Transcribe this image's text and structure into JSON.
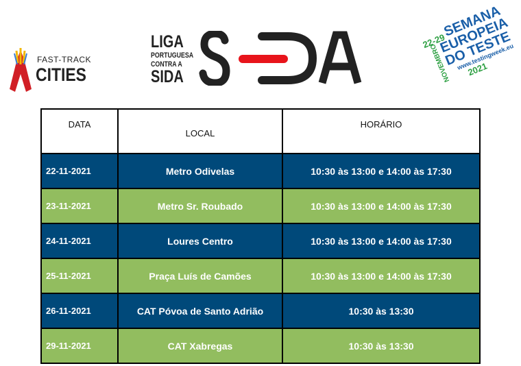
{
  "logos": {
    "fast_track": {
      "line1": "FAST-TRACK",
      "line2": "CITIES"
    },
    "liga": {
      "line1": "LIGA",
      "line2": "PORTUGUESA",
      "line3": "CONTRA A",
      "line4": "SIDA",
      "mark": "SIDA"
    },
    "semana": {
      "dates": "22-29",
      "month": "NOVEMBRO",
      "year": "2021",
      "line1": "SEMANA",
      "line2": "EUROPEIA",
      "line3": "DO TESTE",
      "url": "www.testingweek.eu"
    }
  },
  "colors": {
    "blue": "#00497a",
    "green": "#92bd5f"
  },
  "table": {
    "headers": [
      "DATA",
      "LOCAL",
      "HORÁRIO"
    ],
    "rows": [
      {
        "date": "22-11-2021",
        "local": "Metro Odivelas",
        "horario": "10:30 às 13:00 e 14:00 às 17:30",
        "color": "blue"
      },
      {
        "date": "23-11-2021",
        "local": "Metro Sr. Roubado",
        "horario": "10:30 às 13:00 e 14:00 às 17:30",
        "color": "green"
      },
      {
        "date": "24-11-2021",
        "local": "Loures Centro",
        "horario": "10:30 às 13:00 e 14:00 às 17:30",
        "color": "blue"
      },
      {
        "date": "25-11-2021",
        "local": "Praça Luís de Camões",
        "horario": "10:30 às 13:00 e 14:00 às 17:30",
        "color": "green"
      },
      {
        "date": "26-11-2021",
        "local": "CAT Póvoa de Santo Adrião",
        "horario": "10:30 às 13:30",
        "color": "blue"
      },
      {
        "date": "29-11-2021",
        "local": "CAT Xabregas",
        "horario": "10:30 às 13:30",
        "color": "green"
      }
    ]
  }
}
